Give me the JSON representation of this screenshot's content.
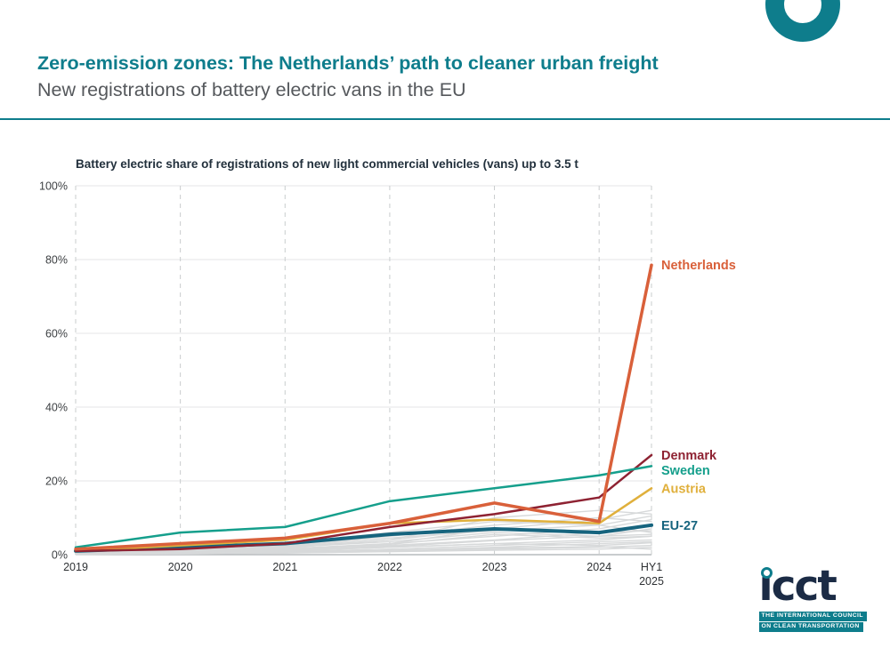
{
  "header": {
    "title": "Zero-emission zones: The Netherlands’ path to cleaner urban freight",
    "subtitle": "New registrations of battery electric vans in the EU"
  },
  "chart_data": {
    "type": "line",
    "title": "Battery electric share of registrations of new light commercial vehicles (vans) up to 3.5 t",
    "x_labels": [
      "2019",
      "2020",
      "2021",
      "2022",
      "2023",
      "2024",
      "HY1\n2025"
    ],
    "x_positions": [
      0,
      1,
      2,
      3,
      4,
      5,
      5.5
    ],
    "ylim": [
      0,
      100
    ],
    "yticks": [
      0,
      20,
      40,
      60,
      80,
      100
    ],
    "ytick_labels": [
      "0%",
      "20%",
      "40%",
      "60%",
      "80%",
      "100%"
    ],
    "grid": "horizontal solid, vertical dashed",
    "legend_position": "right-of-line-ends",
    "series": [
      {
        "name": "EU-27",
        "color": "#16647e",
        "width": 4,
        "values": [
          1,
          2,
          3,
          5.5,
          7,
          6,
          8
        ]
      },
      {
        "name": "Austria",
        "color": "#e0b03c",
        "width": 2.5,
        "values": [
          1,
          2.5,
          4,
          8.5,
          9.5,
          8.5,
          18
        ]
      },
      {
        "name": "Denmark",
        "color": "#8e2232",
        "width": 2.5,
        "values": [
          1,
          1.5,
          3,
          7.5,
          11,
          15.5,
          27
        ]
      },
      {
        "name": "Sweden",
        "color": "#159f8c",
        "width": 2.5,
        "values": [
          2,
          6,
          7.5,
          14.5,
          18,
          21.5,
          24
        ]
      },
      {
        "name": "Netherlands",
        "color": "#d9603a",
        "width": 3.5,
        "values": [
          1.5,
          3,
          4.5,
          8.5,
          14,
          9,
          78.5
        ]
      }
    ],
    "background_series_note": "other EU member states, unlabeled gray lines",
    "background_color": "#d7d9da",
    "background_series": [
      [
        0.5,
        1,
        2,
        4,
        7,
        9.5,
        12
      ],
      [
        0.3,
        0.8,
        1.5,
        3,
        5,
        7,
        9.5
      ],
      [
        1,
        2,
        3,
        6,
        9,
        8,
        10.5
      ],
      [
        0.2,
        0.5,
        1,
        2,
        3,
        4,
        5
      ],
      [
        0.5,
        1.5,
        2.5,
        5,
        8,
        10,
        9
      ],
      [
        0.3,
        1,
        2,
        3.5,
        6,
        5,
        7
      ],
      [
        0.2,
        0.6,
        1.2,
        2.5,
        4,
        6,
        8
      ],
      [
        0.1,
        0.4,
        0.8,
        1.5,
        2.5,
        3.5,
        4
      ],
      [
        0.5,
        1,
        1.8,
        4,
        10,
        12,
        11
      ],
      [
        0.2,
        0.5,
        1,
        2,
        3,
        2.5,
        3.2
      ],
      [
        0.1,
        0.3,
        0.6,
        1.2,
        2,
        3,
        3.5
      ],
      [
        0.4,
        0.9,
        1.6,
        3,
        7,
        6,
        6.5
      ],
      [
        0.1,
        0.2,
        0.5,
        1,
        1.5,
        2,
        2.5
      ],
      [
        0.3,
        0.7,
        1.4,
        2.8,
        5.5,
        4.5,
        5
      ],
      [
        0.1,
        0.3,
        0.5,
        0.8,
        1.2,
        1.5,
        2
      ],
      [
        0.6,
        1.2,
        2.2,
        4.5,
        6.5,
        8,
        6
      ],
      [
        0.2,
        0.4,
        1,
        2.2,
        3.8,
        5,
        5.5
      ],
      [
        0.1,
        0.2,
        0.4,
        0.9,
        1.8,
        2.2,
        1.5
      ]
    ]
  },
  "logo": {
    "wordmark": "icct",
    "wordmark_display": "ıcct",
    "tagline_line1": "THE INTERNATIONAL COUNCIL",
    "tagline_line2": "ON CLEAN TRANSPORTATION"
  },
  "colors": {
    "accent_teal": "#0e7d8c",
    "title_teal": "#0e7d8c",
    "subtitle_gray": "#55585c",
    "netherlands": "#d9603a",
    "denmark": "#8e2232",
    "sweden": "#159f8c",
    "austria": "#e0b03c",
    "eu27": "#16647e"
  }
}
